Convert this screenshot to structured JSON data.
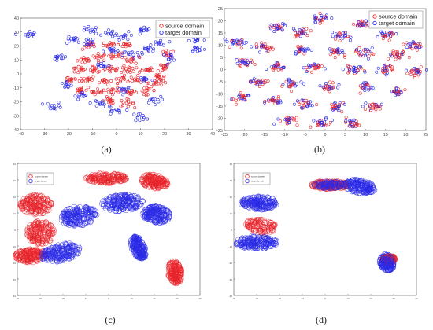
{
  "figure_title": "",
  "captions": [
    "(a)",
    "(b)",
    "(c)",
    "(d)"
  ],
  "colors": {
    "source": "#e8242a",
    "target": "#2929e6"
  },
  "chart_data": [
    {
      "type": "scatter",
      "panel": "a",
      "title": "",
      "xlabel": "",
      "ylabel": "",
      "xlim": [
        -40,
        40
      ],
      "ylim": [
        -40,
        40
      ],
      "xticks": [
        -40,
        -30,
        -20,
        -10,
        0,
        10,
        20,
        30,
        40
      ],
      "yticks": [
        -40,
        -30,
        -20,
        -10,
        0,
        10,
        20,
        30,
        40
      ],
      "legend": {
        "position": "top-right",
        "entries": [
          "source domain",
          "target domain"
        ]
      },
      "grid": false,
      "series": [
        {
          "name": "source domain",
          "marker": "circle",
          "clusters": [
            [
              -13,
              10
            ],
            [
              -7,
              12
            ],
            [
              0,
              13
            ],
            [
              7,
              10
            ],
            [
              -16,
              3
            ],
            [
              -9,
              3
            ],
            [
              -2,
              3
            ],
            [
              5,
              3
            ],
            [
              12,
              3
            ],
            [
              19,
              5
            ],
            [
              -19,
              -4
            ],
            [
              -12,
              -4
            ],
            [
              -5,
              -5
            ],
            [
              2,
              -4
            ],
            [
              9,
              -4
            ],
            [
              16,
              -6
            ],
            [
              -15,
              -12
            ],
            [
              -8,
              -12
            ],
            [
              -1,
              -13
            ],
            [
              6,
              -13
            ],
            [
              13,
              -12
            ],
            [
              -3,
              -19
            ],
            [
              4,
              -21
            ],
            [
              -11,
              20
            ],
            [
              -3,
              21
            ],
            [
              4,
              21
            ],
            [
              18,
              -2
            ],
            [
              21,
              14
            ]
          ]
        },
        {
          "name": "target domain",
          "marker": "circle",
          "clusters": [
            [
              -19,
              24
            ],
            [
              -11,
              31
            ],
            [
              -2,
              29
            ],
            [
              11,
              30
            ],
            [
              18,
              22
            ],
            [
              -23,
              12
            ],
            [
              -26,
              -23
            ],
            [
              -12,
              23
            ],
            [
              4,
              27
            ],
            [
              13,
              17
            ],
            [
              22,
              12
            ],
            [
              -7,
              -21
            ],
            [
              -1,
              -27
            ],
            [
              10,
              -31
            ],
            [
              15,
              -19
            ],
            [
              -21,
              -8
            ],
            [
              -2,
              16
            ],
            [
              6,
              14
            ],
            [
              12,
              -4
            ],
            [
              -6,
              6
            ],
            [
              33,
              25
            ],
            [
              34,
              18
            ],
            [
              3,
              -11
            ],
            [
              -14,
              -16
            ],
            [
              -37,
              28
            ]
          ]
        }
      ]
    },
    {
      "type": "scatter",
      "panel": "b",
      "title": "",
      "xlabel": "",
      "ylabel": "",
      "xlim": [
        -25,
        25
      ],
      "ylim": [
        -25,
        25
      ],
      "xticks": [
        -25,
        -20,
        -15,
        -10,
        -5,
        0,
        5,
        10,
        15,
        20,
        25
      ],
      "yticks": [
        -25,
        -20,
        -15,
        -10,
        -5,
        0,
        5,
        10,
        15,
        20,
        25
      ],
      "legend": {
        "position": "top-right",
        "entries": [
          "source domain",
          "target domain"
        ]
      },
      "grid": false,
      "series": [
        {
          "name": "source domain",
          "marker": "circle",
          "mixed_with": "target domain"
        },
        {
          "name": "target domain",
          "marker": "circle",
          "mixed_with": "source domain"
        }
      ],
      "clusters": [
        [
          -1,
          21
        ],
        [
          9,
          19
        ],
        [
          -12,
          17
        ],
        [
          -6,
          15
        ],
        [
          4,
          14
        ],
        [
          15,
          14
        ],
        [
          22,
          10
        ],
        [
          -22,
          11
        ],
        [
          -15,
          9
        ],
        [
          -6,
          8
        ],
        [
          3,
          7
        ],
        [
          10,
          7
        ],
        [
          18,
          6
        ],
        [
          -20,
          3
        ],
        [
          -12,
          1
        ],
        [
          -3,
          1
        ],
        [
          7,
          0
        ],
        [
          15,
          0
        ],
        [
          22,
          -1
        ],
        [
          -17,
          -5
        ],
        [
          -8,
          -6
        ],
        [
          1,
          -7
        ],
        [
          10,
          -7
        ],
        [
          18,
          -9
        ],
        [
          -21,
          -12
        ],
        [
          -13,
          -13
        ],
        [
          -5,
          -14
        ],
        [
          3,
          -15
        ],
        [
          12,
          -15
        ],
        [
          -9,
          -21
        ],
        [
          -1,
          -22
        ],
        [
          7,
          -22
        ]
      ]
    },
    {
      "type": "scatter",
      "panel": "c",
      "title": "",
      "xlabel": "",
      "ylabel": "",
      "xlim": [
        -40,
        40
      ],
      "ylim": [
        -40,
        40
      ],
      "xticks": [
        -40,
        -30,
        -20,
        -10,
        0,
        10,
        20,
        30,
        40
      ],
      "yticks": [
        -40,
        -30,
        -20,
        -10,
        0,
        10,
        20,
        30,
        40
      ],
      "legend": {
        "position": "top-left",
        "entries": [
          "source domain",
          "target domain"
        ]
      },
      "grid": false,
      "series": [
        {
          "name": "source domain",
          "marker": "circle",
          "blobs": [
            [
              -1,
              31,
              9,
              3,
              0
            ],
            [
              20,
              29,
              6,
              4,
              -20
            ],
            [
              -32,
              15,
              7,
              6,
              0
            ],
            [
              -30,
              -2,
              6,
              7,
              0
            ],
            [
              -34,
              -16,
              7,
              4,
              0
            ],
            [
              29,
              -26,
              3,
              7,
              5
            ]
          ]
        },
        {
          "name": "target domain",
          "marker": "circle",
          "blobs": [
            [
              -13,
              8,
              8,
              6,
              15
            ],
            [
              6,
              16,
              9,
              5,
              5
            ],
            [
              21,
              9,
              6,
              5,
              -10
            ],
            [
              -21,
              -14,
              9,
              5,
              20
            ],
            [
              13,
              -11,
              3,
              7,
              15
            ]
          ]
        }
      ]
    },
    {
      "type": "scatter",
      "panel": "d",
      "title": "",
      "xlabel": "",
      "ylabel": "",
      "xlim": [
        -40,
        40
      ],
      "ylim": [
        -40,
        40
      ],
      "xticks": [
        -40,
        -30,
        -20,
        -10,
        0,
        10,
        20,
        30,
        40
      ],
      "yticks": [
        -40,
        -30,
        -20,
        -10,
        0,
        10,
        20,
        30,
        40
      ],
      "legend": {
        "position": "top-left",
        "entries": [
          "source domain",
          "target domain"
        ]
      },
      "grid": false,
      "series": [
        {
          "name": "source domain",
          "marker": "circle",
          "blobs": [
            [
              2,
              27,
              8,
              2.5,
              0
            ],
            [
              -28,
              2,
              7,
              4,
              -15
            ],
            [
              28,
              -18,
              3,
              2,
              0
            ]
          ]
        },
        {
          "name": "target domain",
          "marker": "circle",
          "blobs": [
            [
              -29,
              16,
              8,
              4,
              0
            ],
            [
              -30,
              -8,
              9,
              4,
              0
            ],
            [
              2,
              27,
              7,
              2,
              0
            ],
            [
              15,
              26,
              7,
              4,
              -15
            ],
            [
              27,
              -20,
              3,
              5,
              10
            ]
          ]
        }
      ]
    }
  ]
}
